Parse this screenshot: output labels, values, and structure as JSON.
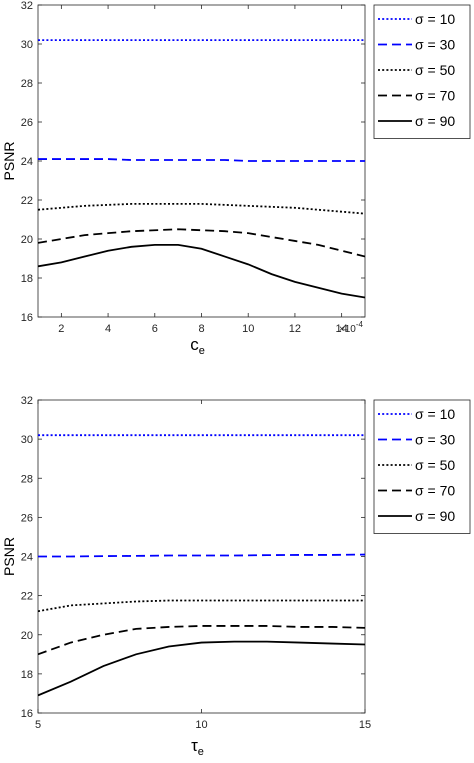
{
  "chart_data": [
    {
      "type": "line",
      "ylabel": "PSNR",
      "xlabel": {
        "main": "c",
        "sub": "e"
      },
      "x_multiplier": {
        "base": "×10",
        "exp": "-4"
      },
      "xlim": [
        1,
        15
      ],
      "ylim": [
        16,
        32
      ],
      "xticks": [
        2,
        4,
        6,
        8,
        10,
        12,
        14
      ],
      "yticks": [
        16,
        18,
        20,
        22,
        24,
        26,
        28,
        30,
        32
      ],
      "grid": false,
      "legend_position": "outside-right-top",
      "x": [
        1,
        2,
        3,
        4,
        5,
        6,
        7,
        8,
        9,
        10,
        11,
        12,
        13,
        14,
        15
      ],
      "series": [
        {
          "name": "σ = 10",
          "color": "#0000ff",
          "style": "dotted",
          "values": [
            30.2,
            30.2,
            30.2,
            30.2,
            30.2,
            30.2,
            30.2,
            30.2,
            30.2,
            30.2,
            30.2,
            30.2,
            30.2,
            30.2,
            30.2
          ]
        },
        {
          "name": "σ = 30",
          "color": "#0000ff",
          "style": "dashed",
          "values": [
            24.1,
            24.1,
            24.1,
            24.1,
            24.05,
            24.05,
            24.05,
            24.05,
            24.05,
            24.0,
            24.0,
            24.0,
            24.0,
            24.0,
            24.0
          ]
        },
        {
          "name": "σ = 50",
          "color": "#000000",
          "style": "dotted",
          "values": [
            21.5,
            21.6,
            21.7,
            21.75,
            21.8,
            21.8,
            21.8,
            21.8,
            21.75,
            21.7,
            21.65,
            21.6,
            21.5,
            21.4,
            21.3
          ]
        },
        {
          "name": "σ = 70",
          "color": "#000000",
          "style": "dashed",
          "values": [
            19.8,
            20.0,
            20.2,
            20.3,
            20.4,
            20.45,
            20.5,
            20.45,
            20.4,
            20.3,
            20.1,
            19.9,
            19.7,
            19.4,
            19.1
          ]
        },
        {
          "name": "σ = 90",
          "color": "#000000",
          "style": "solid",
          "values": [
            18.6,
            18.8,
            19.1,
            19.4,
            19.6,
            19.7,
            19.7,
            19.5,
            19.1,
            18.7,
            18.2,
            17.8,
            17.5,
            17.2,
            17.0
          ]
        }
      ]
    },
    {
      "type": "line",
      "ylabel": "PSNR",
      "xlabel": {
        "main": "τ",
        "sub": "e"
      },
      "xlim": [
        5,
        15
      ],
      "ylim": [
        16,
        32
      ],
      "xticks": [
        5,
        10,
        15
      ],
      "yticks": [
        16,
        18,
        20,
        22,
        24,
        26,
        28,
        30,
        32
      ],
      "grid": false,
      "legend_position": "outside-right-top",
      "x": [
        5,
        6,
        7,
        8,
        9,
        10,
        11,
        12,
        13,
        14,
        15
      ],
      "series": [
        {
          "name": "σ = 10",
          "color": "#0000ff",
          "style": "dotted",
          "values": [
            30.2,
            30.2,
            30.2,
            30.2,
            30.2,
            30.2,
            30.2,
            30.2,
            30.2,
            30.2,
            30.2
          ]
        },
        {
          "name": "σ = 30",
          "color": "#0000ff",
          "style": "dashed",
          "values": [
            24.0,
            24.0,
            24.02,
            24.03,
            24.05,
            24.05,
            24.05,
            24.07,
            24.08,
            24.08,
            24.1
          ]
        },
        {
          "name": "σ = 50",
          "color": "#000000",
          "style": "dotted",
          "values": [
            21.2,
            21.5,
            21.6,
            21.7,
            21.75,
            21.75,
            21.75,
            21.75,
            21.75,
            21.75,
            21.75
          ]
        },
        {
          "name": "σ = 70",
          "color": "#000000",
          "style": "dashed",
          "values": [
            19.0,
            19.6,
            20.0,
            20.3,
            20.4,
            20.45,
            20.45,
            20.45,
            20.4,
            20.4,
            20.35
          ]
        },
        {
          "name": "σ = 90",
          "color": "#000000",
          "style": "solid",
          "values": [
            16.9,
            17.6,
            18.4,
            19.0,
            19.4,
            19.6,
            19.65,
            19.65,
            19.6,
            19.55,
            19.5
          ]
        }
      ]
    }
  ]
}
